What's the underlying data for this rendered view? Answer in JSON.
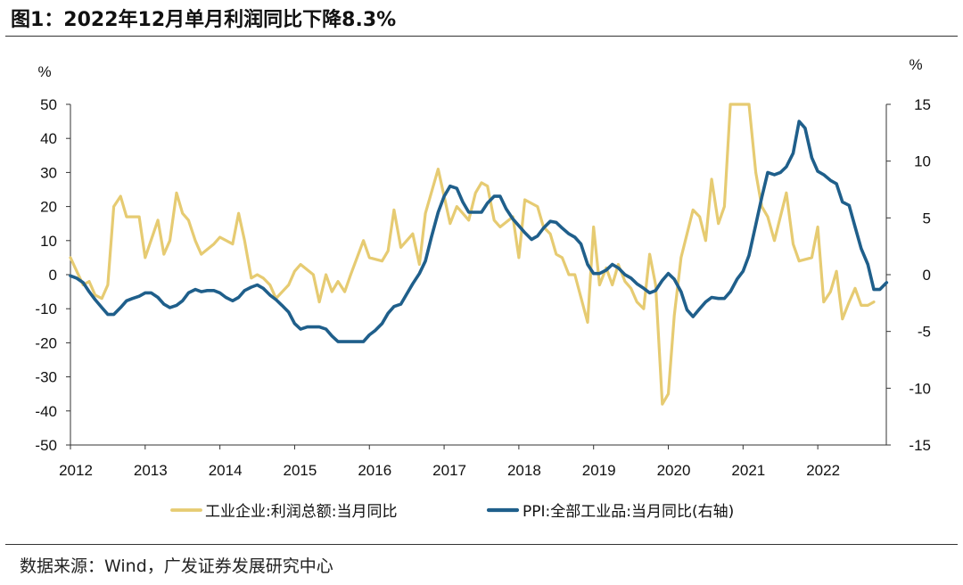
{
  "title": "图1：2022年12月单月利润同比下降8.3%",
  "source": "数据来源：Wind，广发证券发展研究中心",
  "colors": {
    "profit": "#E6CB72",
    "ppi": "#1F5F8B",
    "axis": "#333333"
  },
  "chart_data": {
    "type": "line",
    "left_unit": "%",
    "right_unit": "%",
    "y_left": {
      "lim": [
        -50,
        50
      ],
      "ticks": [
        50,
        40,
        30,
        20,
        10,
        0,
        -10,
        -20,
        -30,
        -40,
        -50
      ]
    },
    "y_right": {
      "lim": [
        -15,
        15
      ],
      "ticks": [
        15,
        10,
        5,
        0,
        -5,
        -10,
        -15
      ]
    },
    "x": {
      "lim": [
        2012,
        2022.917
      ],
      "ticks": [
        "2012",
        "2013",
        "2014",
        "2015",
        "2016",
        "2017",
        "2018",
        "2019",
        "2020",
        "2021",
        "2022"
      ]
    },
    "series": [
      {
        "name": "工业企业:利润总额:当月同比",
        "axis": "left",
        "points": [
          [
            2012.0,
            5
          ],
          [
            2012.17,
            -3
          ],
          [
            2012.25,
            -2
          ],
          [
            2012.33,
            -6
          ],
          [
            2012.42,
            -7
          ],
          [
            2012.5,
            -3
          ],
          [
            2012.58,
            20
          ],
          [
            2012.67,
            23
          ],
          [
            2012.75,
            17
          ],
          [
            2012.92,
            17
          ],
          [
            2013.0,
            5
          ],
          [
            2013.17,
            16
          ],
          [
            2013.25,
            6
          ],
          [
            2013.33,
            10
          ],
          [
            2013.42,
            24
          ],
          [
            2013.5,
            18
          ],
          [
            2013.58,
            16
          ],
          [
            2013.67,
            10
          ],
          [
            2013.75,
            6
          ],
          [
            2013.92,
            9
          ],
          [
            2014.0,
            11
          ],
          [
            2014.17,
            9
          ],
          [
            2014.25,
            18
          ],
          [
            2014.33,
            10
          ],
          [
            2014.42,
            -1
          ],
          [
            2014.5,
            0
          ],
          [
            2014.58,
            -1
          ],
          [
            2014.67,
            -3
          ],
          [
            2014.75,
            -7
          ],
          [
            2014.92,
            -3
          ],
          [
            2015.0,
            1
          ],
          [
            2015.08,
            3
          ],
          [
            2015.25,
            0
          ],
          [
            2015.33,
            -8
          ],
          [
            2015.42,
            0
          ],
          [
            2015.5,
            -5
          ],
          [
            2015.58,
            -2
          ],
          [
            2015.67,
            -5
          ],
          [
            2015.75,
            0
          ],
          [
            2015.92,
            10
          ],
          [
            2016.0,
            5
          ],
          [
            2016.17,
            4
          ],
          [
            2016.25,
            7
          ],
          [
            2016.33,
            19
          ],
          [
            2016.42,
            8
          ],
          [
            2016.58,
            12
          ],
          [
            2016.67,
            3
          ],
          [
            2016.75,
            18
          ],
          [
            2016.92,
            31
          ],
          [
            2017.0,
            23
          ],
          [
            2017.08,
            15
          ],
          [
            2017.17,
            20
          ],
          [
            2017.25,
            18
          ],
          [
            2017.33,
            16
          ],
          [
            2017.42,
            24
          ],
          [
            2017.5,
            27
          ],
          [
            2017.58,
            26
          ],
          [
            2017.67,
            16
          ],
          [
            2017.75,
            14
          ],
          [
            2017.92,
            17
          ],
          [
            2018.0,
            5
          ],
          [
            2018.08,
            22
          ],
          [
            2018.25,
            20
          ],
          [
            2018.33,
            14
          ],
          [
            2018.42,
            12
          ],
          [
            2018.5,
            6
          ],
          [
            2018.58,
            5
          ],
          [
            2018.67,
            0
          ],
          [
            2018.75,
            0
          ],
          [
            2018.92,
            -14
          ],
          [
            2019.0,
            14
          ],
          [
            2019.08,
            -3
          ],
          [
            2019.17,
            2
          ],
          [
            2019.25,
            -3
          ],
          [
            2019.33,
            3
          ],
          [
            2019.42,
            -2
          ],
          [
            2019.5,
            -4
          ],
          [
            2019.58,
            -8
          ],
          [
            2019.67,
            -10
          ],
          [
            2019.75,
            6
          ],
          [
            2019.83,
            -3
          ],
          [
            2019.92,
            -38
          ],
          [
            2020.0,
            -35
          ],
          [
            2020.08,
            -12
          ],
          [
            2020.17,
            5
          ],
          [
            2020.25,
            12
          ],
          [
            2020.33,
            19
          ],
          [
            2020.42,
            17
          ],
          [
            2020.5,
            10
          ],
          [
            2020.58,
            28
          ],
          [
            2020.67,
            15
          ],
          [
            2020.75,
            20
          ],
          [
            2020.83,
            50
          ],
          [
            2020.92,
            50
          ],
          [
            2021.0,
            50
          ],
          [
            2021.08,
            50
          ],
          [
            2021.17,
            30
          ],
          [
            2021.25,
            20
          ],
          [
            2021.33,
            17
          ],
          [
            2021.42,
            10
          ],
          [
            2021.5,
            17
          ],
          [
            2021.58,
            24
          ],
          [
            2021.67,
            9
          ],
          [
            2021.75,
            4
          ],
          [
            2021.92,
            5
          ],
          [
            2022.0,
            14
          ],
          [
            2022.08,
            -8
          ],
          [
            2022.17,
            -5
          ],
          [
            2022.25,
            1
          ],
          [
            2022.33,
            -13
          ],
          [
            2022.42,
            -8
          ],
          [
            2022.5,
            -4
          ],
          [
            2022.58,
            -9
          ],
          [
            2022.67,
            -9
          ],
          [
            2022.75,
            -8
          ]
        ]
      },
      {
        "name": "PPI:全部工业品:当月同比(右轴)",
        "axis": "right",
        "points": [
          [
            2012.0,
            -0.1
          ],
          [
            2012.08,
            -0.3
          ],
          [
            2012.17,
            -0.7
          ],
          [
            2012.25,
            -1.5
          ],
          [
            2012.33,
            -2.2
          ],
          [
            2012.42,
            -2.9
          ],
          [
            2012.5,
            -3.5
          ],
          [
            2012.58,
            -3.5
          ],
          [
            2012.67,
            -2.9
          ],
          [
            2012.75,
            -2.3
          ],
          [
            2012.83,
            -2.1
          ],
          [
            2012.92,
            -1.9
          ],
          [
            2013.0,
            -1.6
          ],
          [
            2013.08,
            -1.6
          ],
          [
            2013.17,
            -2.0
          ],
          [
            2013.25,
            -2.6
          ],
          [
            2013.33,
            -2.9
          ],
          [
            2013.42,
            -2.7
          ],
          [
            2013.5,
            -2.3
          ],
          [
            2013.58,
            -1.6
          ],
          [
            2013.67,
            -1.3
          ],
          [
            2013.75,
            -1.5
          ],
          [
            2013.83,
            -1.4
          ],
          [
            2013.92,
            -1.4
          ],
          [
            2014.0,
            -1.6
          ],
          [
            2014.08,
            -2.0
          ],
          [
            2014.17,
            -2.3
          ],
          [
            2014.25,
            -2.0
          ],
          [
            2014.33,
            -1.4
          ],
          [
            2014.42,
            -1.1
          ],
          [
            2014.5,
            -0.9
          ],
          [
            2014.58,
            -1.2
          ],
          [
            2014.67,
            -1.8
          ],
          [
            2014.75,
            -2.2
          ],
          [
            2014.83,
            -2.7
          ],
          [
            2014.92,
            -3.3
          ],
          [
            2015.0,
            -4.3
          ],
          [
            2015.08,
            -4.8
          ],
          [
            2015.17,
            -4.6
          ],
          [
            2015.25,
            -4.6
          ],
          [
            2015.33,
            -4.6
          ],
          [
            2015.42,
            -4.8
          ],
          [
            2015.5,
            -5.4
          ],
          [
            2015.58,
            -5.9
          ],
          [
            2015.67,
            -5.9
          ],
          [
            2015.75,
            -5.9
          ],
          [
            2015.83,
            -5.9
          ],
          [
            2015.92,
            -5.9
          ],
          [
            2016.0,
            -5.3
          ],
          [
            2016.08,
            -4.9
          ],
          [
            2016.17,
            -4.3
          ],
          [
            2016.25,
            -3.4
          ],
          [
            2016.33,
            -2.8
          ],
          [
            2016.42,
            -2.6
          ],
          [
            2016.5,
            -1.7
          ],
          [
            2016.58,
            -0.8
          ],
          [
            2016.67,
            0.1
          ],
          [
            2016.75,
            1.2
          ],
          [
            2016.83,
            3.3
          ],
          [
            2016.92,
            5.5
          ],
          [
            2017.0,
            6.9
          ],
          [
            2017.08,
            7.8
          ],
          [
            2017.17,
            7.6
          ],
          [
            2017.25,
            6.4
          ],
          [
            2017.33,
            5.5
          ],
          [
            2017.42,
            5.5
          ],
          [
            2017.5,
            5.5
          ],
          [
            2017.58,
            6.3
          ],
          [
            2017.67,
            6.9
          ],
          [
            2017.75,
            6.9
          ],
          [
            2017.83,
            5.8
          ],
          [
            2017.92,
            4.9
          ],
          [
            2018.0,
            4.3
          ],
          [
            2018.08,
            3.7
          ],
          [
            2018.17,
            3.1
          ],
          [
            2018.25,
            3.4
          ],
          [
            2018.33,
            4.1
          ],
          [
            2018.42,
            4.7
          ],
          [
            2018.5,
            4.6
          ],
          [
            2018.58,
            4.1
          ],
          [
            2018.67,
            3.6
          ],
          [
            2018.75,
            3.3
          ],
          [
            2018.83,
            2.7
          ],
          [
            2018.92,
            0.9
          ],
          [
            2019.0,
            0.1
          ],
          [
            2019.08,
            0.1
          ],
          [
            2019.17,
            0.4
          ],
          [
            2019.25,
            0.9
          ],
          [
            2019.33,
            0.6
          ],
          [
            2019.42,
            0.0
          ],
          [
            2019.5,
            -0.3
          ],
          [
            2019.58,
            -0.8
          ],
          [
            2019.67,
            -1.2
          ],
          [
            2019.75,
            -1.6
          ],
          [
            2019.83,
            -1.4
          ],
          [
            2019.92,
            -0.5
          ],
          [
            2020.0,
            0.1
          ],
          [
            2020.08,
            -0.4
          ],
          [
            2020.17,
            -1.5
          ],
          [
            2020.25,
            -3.1
          ],
          [
            2020.33,
            -3.7
          ],
          [
            2020.42,
            -3.0
          ],
          [
            2020.5,
            -2.4
          ],
          [
            2020.58,
            -2.0
          ],
          [
            2020.67,
            -2.1
          ],
          [
            2020.75,
            -2.1
          ],
          [
            2020.83,
            -1.5
          ],
          [
            2020.92,
            -0.4
          ],
          [
            2021.0,
            0.3
          ],
          [
            2021.08,
            1.7
          ],
          [
            2021.17,
            4.4
          ],
          [
            2021.25,
            6.8
          ],
          [
            2021.33,
            9.0
          ],
          [
            2021.42,
            8.8
          ],
          [
            2021.5,
            9.0
          ],
          [
            2021.58,
            9.5
          ],
          [
            2021.67,
            10.7
          ],
          [
            2021.75,
            13.5
          ],
          [
            2021.83,
            12.9
          ],
          [
            2021.92,
            10.3
          ],
          [
            2022.0,
            9.1
          ],
          [
            2022.08,
            8.8
          ],
          [
            2022.17,
            8.3
          ],
          [
            2022.25,
            8.0
          ],
          [
            2022.33,
            6.4
          ],
          [
            2022.42,
            6.1
          ],
          [
            2022.5,
            4.2
          ],
          [
            2022.58,
            2.3
          ],
          [
            2022.67,
            0.9
          ],
          [
            2022.75,
            -1.3
          ],
          [
            2022.83,
            -1.3
          ],
          [
            2022.92,
            -0.7
          ]
        ]
      }
    ]
  }
}
